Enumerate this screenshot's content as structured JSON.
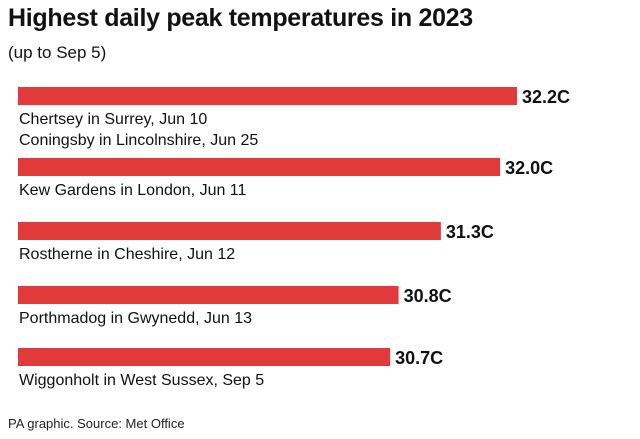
{
  "title": "Highest daily peak temperatures in 2023",
  "subtitle": "(up to Sep 5)",
  "source": "PA graphic. Source: Met Office",
  "colors": {
    "bar": "#e03a3a",
    "text": "#111111"
  },
  "chart_data": {
    "type": "bar",
    "orientation": "horizontal",
    "title": "Highest daily peak temperatures in 2023",
    "subtitle": "(up to Sep 5)",
    "grid": false,
    "value_suffix": "C",
    "bars": [
      {
        "value": 32.2,
        "value_label": "32.2C",
        "labels": [
          "Chertsey in Surrey, Jun 10",
          "Coningsby in Lincolnshire, Jun 25"
        ]
      },
      {
        "value": 32.0,
        "value_label": "32.0C",
        "labels": [
          "Kew Gardens in London, Jun 11"
        ]
      },
      {
        "value": 31.3,
        "value_label": "31.3C",
        "labels": [
          "Rostherne in Cheshire, Jun 12"
        ]
      },
      {
        "value": 30.8,
        "value_label": "30.8C",
        "labels": [
          "Porthmadog in Gwynedd, Jun 13"
        ]
      },
      {
        "value": 30.7,
        "value_label": "30.7C",
        "labels": [
          "Wiggonholt in West Sussex, Sep 5"
        ]
      }
    ]
  }
}
